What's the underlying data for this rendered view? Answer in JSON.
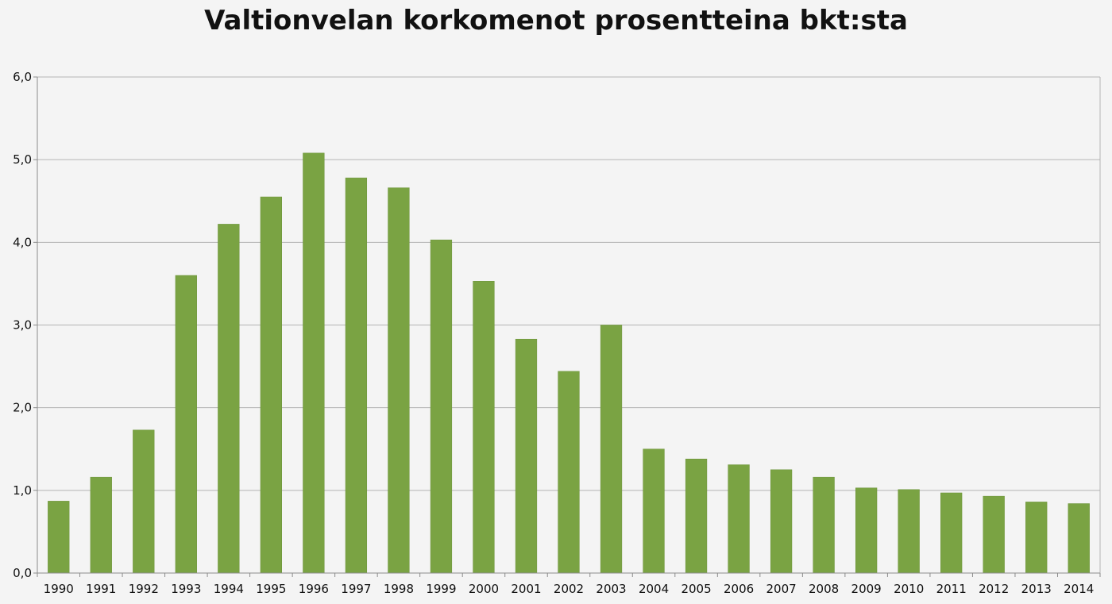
{
  "chart_data": {
    "type": "bar",
    "title": "Valtionvelan korkomenot prosentteina bkt:sta",
    "xlabel": "",
    "ylabel": "",
    "categories": [
      "1990",
      "1991",
      "1992",
      "1993",
      "1994",
      "1995",
      "1996",
      "1997",
      "1998",
      "1999",
      "2000",
      "2001",
      "2002",
      "2003",
      "2004",
      "2005",
      "2006",
      "2007",
      "2008",
      "2009",
      "2010",
      "2011",
      "2012",
      "2013",
      "2014"
    ],
    "values": [
      0.87,
      1.16,
      1.73,
      3.6,
      4.22,
      4.55,
      5.08,
      4.78,
      4.66,
      4.03,
      3.53,
      2.83,
      2.44,
      3.0,
      1.5,
      1.38,
      1.31,
      1.25,
      1.16,
      1.03,
      1.01,
      0.97,
      0.93,
      0.86,
      0.84
    ],
    "ylim": [
      0,
      6
    ],
    "yticks": [
      "0,0",
      "1,0",
      "2,0",
      "3,0",
      "4,0",
      "5,0",
      "6,0"
    ],
    "grid": true,
    "legend": "none",
    "colors": {
      "bar": "#7aa343",
      "bar_edge": "#6b9238",
      "grid": "#b3b3b3",
      "axis": "#8c8c8c",
      "background": "#f4f4f4"
    }
  }
}
